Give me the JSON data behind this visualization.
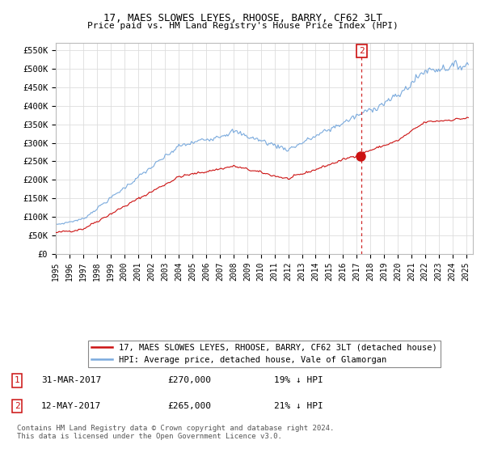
{
  "title": "17, MAES SLOWES LEYES, RHOOSE, BARRY, CF62 3LT",
  "subtitle": "Price paid vs. HM Land Registry's House Price Index (HPI)",
  "ylabel_ticks": [
    "£0",
    "£50K",
    "£100K",
    "£150K",
    "£200K",
    "£250K",
    "£300K",
    "£350K",
    "£400K",
    "£450K",
    "£500K",
    "£550K"
  ],
  "ytick_vals": [
    0,
    50000,
    100000,
    150000,
    200000,
    250000,
    300000,
    350000,
    400000,
    450000,
    500000,
    550000
  ],
  "ylim": [
    0,
    570000
  ],
  "xlim_start": 1995.0,
  "xlim_end": 2025.5,
  "hpi_color": "#7aaadd",
  "price_color": "#cc1111",
  "vline_color": "#cc1111",
  "legend_label1": "17, MAES SLOWES LEYES, RHOOSE, BARRY, CF62 3LT (detached house)",
  "legend_label2": "HPI: Average price, detached house, Vale of Glamorgan",
  "note1_label": "1",
  "note1_date": "31-MAR-2017",
  "note1_price": "£270,000",
  "note1_hpi": "19% ↓ HPI",
  "note2_label": "2",
  "note2_date": "12-MAY-2017",
  "note2_price": "£265,000",
  "note2_hpi": "21% ↓ HPI",
  "footer": "Contains HM Land Registry data © Crown copyright and database right 2024.\nThis data is licensed under the Open Government Licence v3.0.",
  "background_color": "#ffffff",
  "grid_color": "#dddddd"
}
